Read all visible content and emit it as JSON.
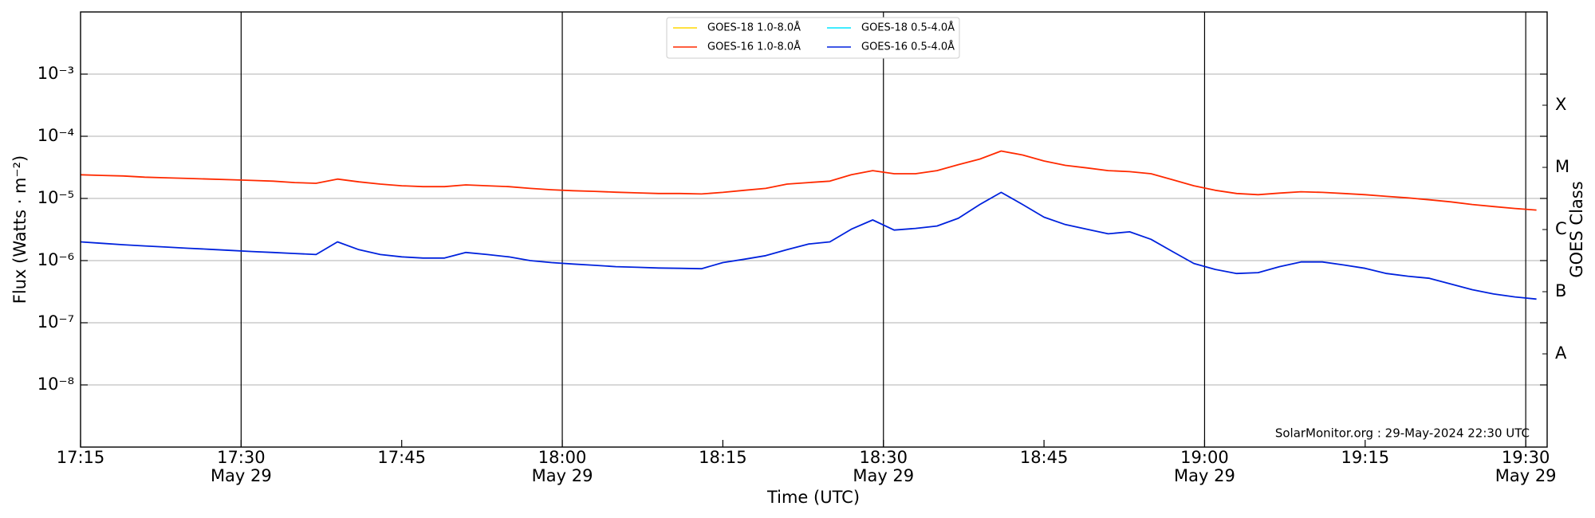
{
  "chart_data": {
    "type": "line",
    "xlabel": "Time (UTC)",
    "ylabel": "Flux (Watts · m⁻²)",
    "y2label": "GOES Class",
    "annotation": "SolarMonitor.org : 29-May-2024 22:30 UTC",
    "log_y": true,
    "grid": true,
    "legend": "upper center",
    "xlim": [
      "17:15",
      "19:32"
    ],
    "xticks": [
      "17:15",
      {
        "value": "17:30",
        "label": "17:30",
        "sublabel": "May 29"
      },
      "17:45",
      {
        "value": "18:00",
        "label": "18:00",
        "sublabel": "May 29"
      },
      "18:15",
      {
        "value": "18:30",
        "label": "18:30",
        "sublabel": "May 29"
      },
      "18:45",
      {
        "value": "19:00",
        "label": "19:00",
        "sublabel": "May 29"
      },
      "19:15",
      {
        "value": "19:30",
        "label": "19:30",
        "sublabel": "May 29"
      }
    ],
    "ylim": [
      1e-09,
      0.01
    ],
    "yticks": [
      {
        "value": 1e-08,
        "label": "10⁻⁸"
      },
      {
        "value": 1e-07,
        "label": "10⁻⁷"
      },
      {
        "value": 1e-06,
        "label": "10⁻⁶"
      },
      {
        "value": 1e-05,
        "label": "10⁻⁵"
      },
      {
        "value": 0.0001,
        "label": "10⁻⁴"
      },
      {
        "value": 0.001,
        "label": "10⁻³"
      }
    ],
    "y2lim": [
      1e-09,
      0.01
    ],
    "y2ticks": [
      {
        "value": 3.16e-08,
        "label": "A"
      },
      {
        "value": 3.16e-07,
        "label": "B"
      },
      {
        "value": 3.16e-06,
        "label": "C"
      },
      {
        "value": 3.16e-05,
        "label": "M"
      },
      {
        "value": 0.000316,
        "label": "X"
      }
    ],
    "x": [
      "17:15",
      "17:17",
      "17:19",
      "17:21",
      "17:23",
      "17:25",
      "17:27",
      "17:29",
      "17:31",
      "17:33",
      "17:35",
      "17:37",
      "17:39",
      "17:41",
      "17:43",
      "17:45",
      "17:47",
      "17:49",
      "17:51",
      "17:53",
      "17:55",
      "17:57",
      "17:59",
      "18:01",
      "18:03",
      "18:05",
      "18:07",
      "18:09",
      "18:11",
      "18:13",
      "18:15",
      "18:17",
      "18:19",
      "18:21",
      "18:23",
      "18:25",
      "18:27",
      "18:29",
      "18:31",
      "18:33",
      "18:35",
      "18:37",
      "18:39",
      "18:41",
      "18:43",
      "18:45",
      "18:47",
      "18:49",
      "18:51",
      "18:53",
      "18:55",
      "18:57",
      "18:59",
      "19:01",
      "19:03",
      "19:05",
      "19:07",
      "19:09",
      "19:11",
      "19:13",
      "19:15",
      "19:17",
      "19:19",
      "19:21",
      "19:23",
      "19:25",
      "19:27",
      "19:29",
      "19:31"
    ],
    "series": [
      {
        "name": "GOES-18 1.0-8.0Å",
        "color": "#ffd700",
        "values": [
          null,
          null,
          null,
          null,
          null,
          null,
          null,
          null,
          null,
          null,
          null,
          null,
          null,
          null,
          null,
          null,
          null,
          null,
          null,
          null,
          null,
          null,
          null,
          null,
          null,
          null,
          null,
          null,
          null,
          null,
          null,
          null,
          null,
          null,
          null,
          null,
          null,
          null,
          null,
          null,
          null,
          null,
          null,
          null,
          null,
          null,
          null,
          null,
          null,
          null,
          null,
          null,
          null,
          null,
          null,
          null,
          null,
          null,
          null,
          null,
          null,
          null,
          null,
          null,
          null,
          null,
          null,
          null,
          null
        ]
      },
      {
        "name": "GOES-18 0.5-4.0Å",
        "color": "#00e5ff",
        "values": [
          null,
          null,
          null,
          null,
          null,
          null,
          null,
          null,
          null,
          null,
          null,
          null,
          null,
          null,
          null,
          null,
          null,
          null,
          null,
          null,
          null,
          null,
          null,
          null,
          null,
          null,
          null,
          null,
          null,
          null,
          null,
          null,
          null,
          null,
          null,
          null,
          null,
          null,
          null,
          null,
          null,
          null,
          null,
          null,
          null,
          null,
          null,
          null,
          null,
          null,
          null,
          null,
          null,
          null,
          null,
          null,
          null,
          null,
          null,
          null,
          null,
          null,
          null,
          null,
          null,
          null,
          null,
          null,
          null
        ]
      },
      {
        "name": "GOES-16 1.0-8.0Å",
        "color": "#ff2a00",
        "values": [
          2.4e-05,
          2.35e-05,
          2.3e-05,
          2.2e-05,
          2.15e-05,
          2.1e-05,
          2.05e-05,
          2e-05,
          1.95e-05,
          1.9e-05,
          1.8e-05,
          1.75e-05,
          2.05e-05,
          1.85e-05,
          1.7e-05,
          1.6e-05,
          1.55e-05,
          1.55e-05,
          1.65e-05,
          1.6e-05,
          1.55e-05,
          1.45e-05,
          1.38e-05,
          1.33e-05,
          1.3e-05,
          1.26e-05,
          1.23e-05,
          1.2e-05,
          1.2e-05,
          1.18e-05,
          1.25e-05,
          1.35e-05,
          1.45e-05,
          1.7e-05,
          1.8e-05,
          1.9e-05,
          2.4e-05,
          2.8e-05,
          2.5e-05,
          2.5e-05,
          2.8e-05,
          3.5e-05,
          4.3e-05,
          5.8e-05,
          5e-05,
          4e-05,
          3.4e-05,
          3.1e-05,
          2.8e-05,
          2.7e-05,
          2.5e-05,
          2e-05,
          1.6e-05,
          1.35e-05,
          1.2e-05,
          1.15e-05,
          1.22e-05,
          1.28e-05,
          1.25e-05,
          1.2e-05,
          1.15e-05,
          1.08e-05,
          1.02e-05,
          9.5e-06,
          8.8e-06,
          8e-06,
          7.4e-06,
          6.9e-06,
          6.5e-06
        ]
      },
      {
        "name": "GOES-16 0.5-4.0Å",
        "color": "#0022dd",
        "values": [
          2e-06,
          1.9e-06,
          1.8e-06,
          1.72e-06,
          1.65e-06,
          1.58e-06,
          1.52e-06,
          1.46e-06,
          1.4e-06,
          1.35e-06,
          1.3e-06,
          1.25e-06,
          2e-06,
          1.5e-06,
          1.25e-06,
          1.15e-06,
          1.1e-06,
          1.1e-06,
          1.35e-06,
          1.25e-06,
          1.15e-06,
          1e-06,
          9.3e-07,
          8.8e-07,
          8.4e-07,
          8e-07,
          7.8e-07,
          7.6e-07,
          7.5e-07,
          7.4e-07,
          9.3e-07,
          1.05e-06,
          1.2e-06,
          1.5e-06,
          1.85e-06,
          2e-06,
          3.2e-06,
          4.5e-06,
          3.1e-06,
          3.3e-06,
          3.6e-06,
          4.8e-06,
          8e-06,
          1.25e-05,
          8e-06,
          5e-06,
          3.8e-06,
          3.2e-06,
          2.7e-06,
          2.9e-06,
          2.2e-06,
          1.4e-06,
          9e-07,
          7.2e-07,
          6.2e-07,
          6.4e-07,
          8e-07,
          9.5e-07,
          9.5e-07,
          8.5e-07,
          7.5e-07,
          6.2e-07,
          5.6e-07,
          5.2e-07,
          4.2e-07,
          3.4e-07,
          2.9e-07,
          2.6e-07,
          2.4e-07
        ]
      }
    ]
  }
}
